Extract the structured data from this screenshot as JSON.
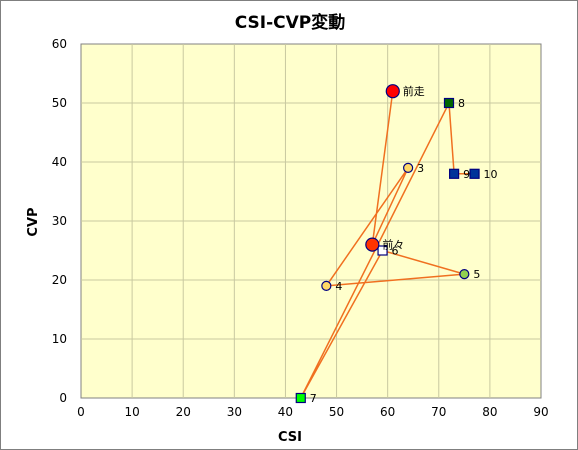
{
  "chart_data": {
    "type": "scatter",
    "title": "CSI-CVP変動",
    "xlabel": "CSI",
    "ylabel": "CVP",
    "xlim": [
      0,
      90
    ],
    "ylim": [
      0,
      60
    ],
    "x_ticks": [
      "0",
      "10",
      "20",
      "30",
      "40",
      "50",
      "60",
      "70",
      "80",
      "90"
    ],
    "y_ticks": [
      "0",
      "10",
      "20",
      "30",
      "40",
      "50",
      "60"
    ],
    "grid": true,
    "points": [
      {
        "label": "前走",
        "x": 61,
        "y": 52,
        "marker": "circle-large",
        "fill": "#ff0000"
      },
      {
        "label": "前々",
        "x": 57,
        "y": 26,
        "marker": "circle-large",
        "fill": "#ff3300"
      },
      {
        "label": "3",
        "x": 64,
        "y": 39,
        "marker": "circle",
        "fill": "#ffd966"
      },
      {
        "label": "4",
        "x": 48,
        "y": 19,
        "marker": "circle",
        "fill": "#ffd966"
      },
      {
        "label": "5",
        "x": 75,
        "y": 21,
        "marker": "circle",
        "fill": "#92d050"
      },
      {
        "label": "6",
        "x": 59,
        "y": 25,
        "marker": "square",
        "fill": "#ffffff"
      },
      {
        "label": "7",
        "x": 43,
        "y": 0,
        "marker": "square",
        "fill": "#00ff00"
      },
      {
        "label": "8",
        "x": 72,
        "y": 50,
        "marker": "square",
        "fill": "#006600"
      },
      {
        "label": "9",
        "x": 73,
        "y": 38,
        "marker": "square",
        "fill": "#003399"
      },
      {
        "label": "10",
        "x": 77,
        "y": 38,
        "marker": "square",
        "fill": "#003399"
      }
    ],
    "line_color": "#f07020",
    "plot_background": "#ffffcc",
    "grid_color": "#c8c8a0"
  }
}
